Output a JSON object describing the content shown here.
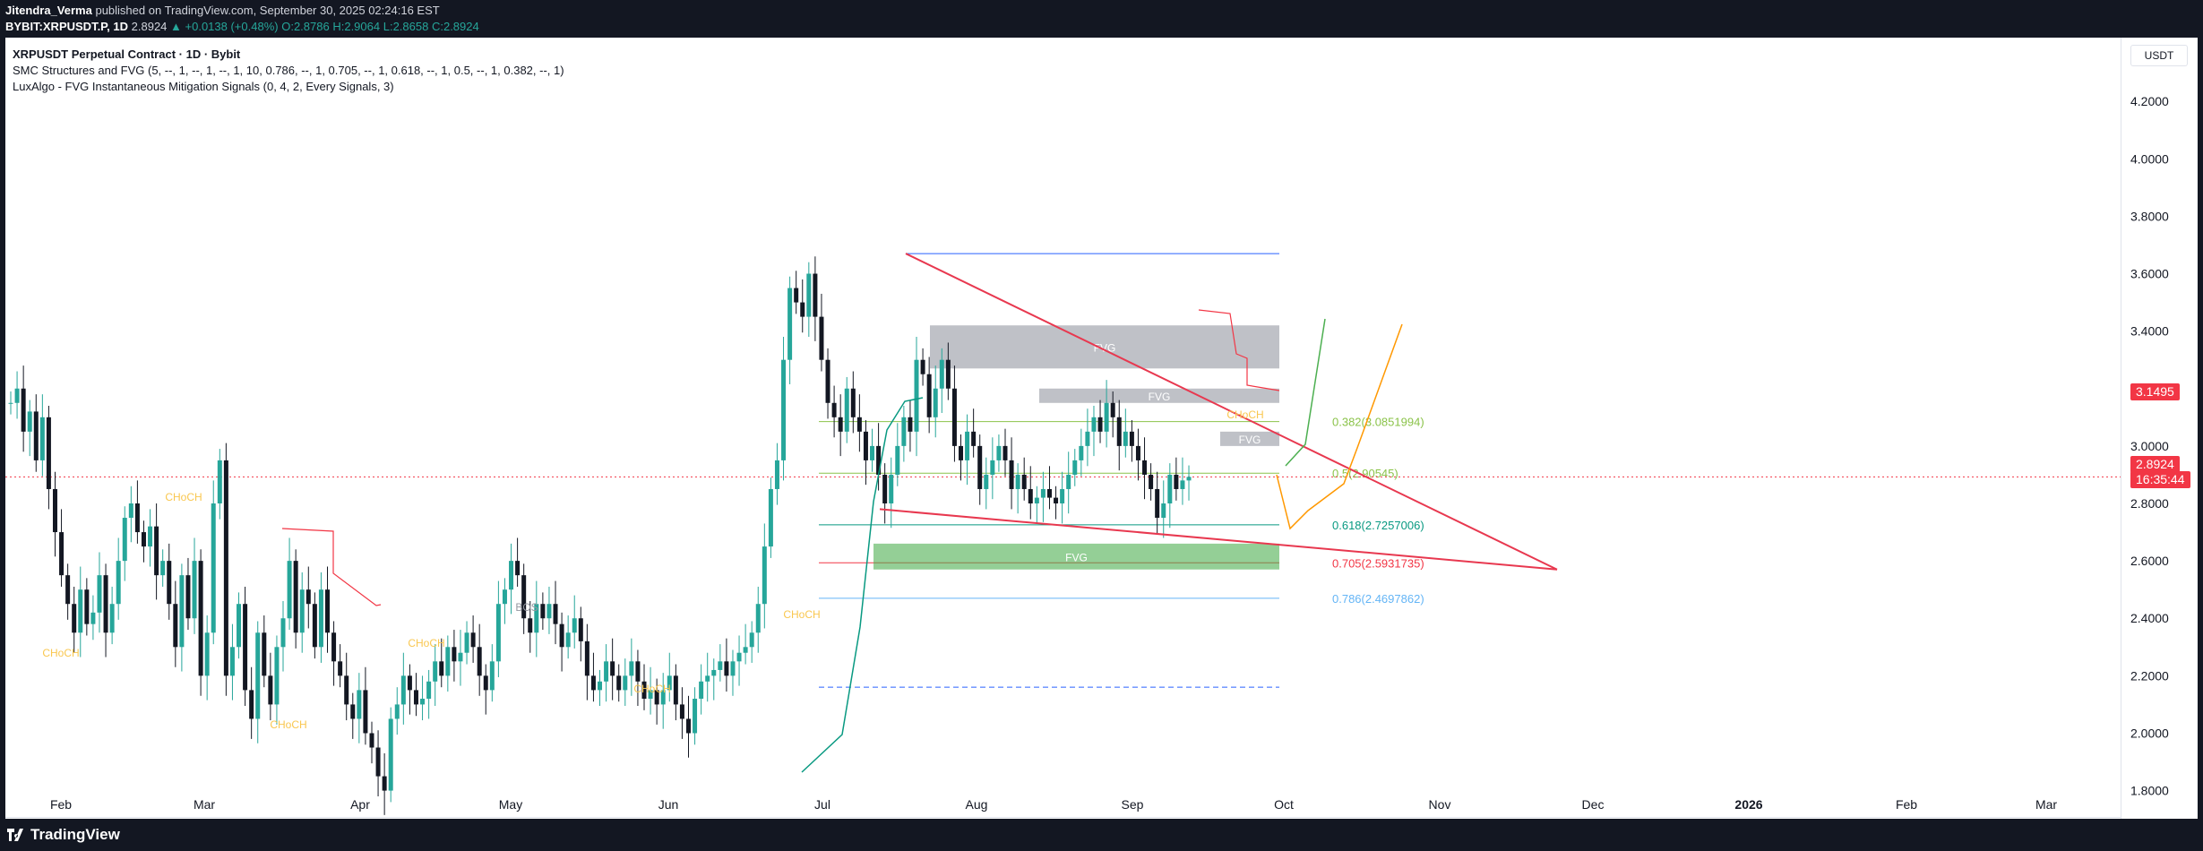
{
  "header": {
    "author": "Jitendra_Verma",
    "published": "published on TradingView.com, September 30, 2025 02:24:16 EST",
    "symbol": "BYBIT:XRPUSDT.P, 1D",
    "last": "2.8924",
    "change": "▲ +0.0138 (+0.48%)",
    "ohlc_o": "O:2.8786",
    "ohlc_h": "H:2.9064",
    "ohlc_l": "L:2.8658",
    "ohlc_c": "C:2.8924"
  },
  "legend": {
    "title": "XRPUSDT Perpetual Contract · 1D · Bybit",
    "ind1": "SMC Structures and FVG (5, --, 1, --, 1, --, 1, 10, 0.786, --, 1, 0.705, --, 1, 0.618, --, 1, 0.5, --, 1, 0.382, --, 1)",
    "ind2": "LuxAlgo - FVG Instantaneous Mitigation Signals (0, 4, 2, Every Signals, 3)"
  },
  "unit": "USDT",
  "price_tag_red": "3.1495",
  "price_tag_current": "2.8924",
  "price_tag_timer": "16:35:44",
  "footer": {
    "brand": "TradingView"
  },
  "colors": {
    "bull": "#26a69a",
    "bear": "#131722",
    "trend": "#e8384f",
    "fvg_gray": "#9598a1",
    "fvg_green": "#4caf50"
  },
  "chart_data": {
    "type": "candlestick",
    "title": "XRPUSDT Perpetual Contract · 1D · Bybit",
    "xlabel": "",
    "ylabel": "",
    "ylim": [
      1.7,
      4.35
    ],
    "x_ticks": [
      "Feb",
      "Mar",
      "Apr",
      "May",
      "Jun",
      "Jul",
      "Aug",
      "Sep",
      "Oct",
      "Nov",
      "Dec",
      "2026",
      "Feb",
      "Mar"
    ],
    "y_ticks": [
      1.8,
      2.0,
      2.2,
      2.4,
      2.6,
      2.8,
      3.0,
      3.2,
      3.4,
      3.6,
      3.8,
      4.0,
      4.2
    ],
    "y_tick_labels": [
      "1.8000",
      "2.0000",
      "2.2000",
      "2.4000",
      "2.6000",
      "2.8000",
      "3.0000",
      "3.2000",
      "3.4000",
      "3.6000",
      "3.8000",
      "4.0000",
      "4.2000"
    ],
    "closes": [
      3.15,
      3.2,
      3.05,
      3.12,
      2.95,
      3.1,
      2.85,
      2.7,
      2.55,
      2.45,
      2.35,
      2.5,
      2.38,
      2.42,
      2.55,
      2.35,
      2.45,
      2.6,
      2.75,
      2.8,
      2.7,
      2.65,
      2.72,
      2.55,
      2.6,
      2.45,
      2.3,
      2.55,
      2.4,
      2.6,
      2.2,
      2.35,
      2.8,
      2.95,
      2.2,
      2.3,
      2.45,
      2.15,
      2.05,
      2.35,
      2.2,
      2.1,
      2.3,
      2.4,
      2.6,
      2.35,
      2.5,
      2.45,
      2.3,
      2.5,
      2.35,
      2.25,
      2.2,
      2.1,
      2.05,
      2.15,
      2.0,
      1.95,
      1.85,
      1.8,
      2.05,
      2.1,
      2.2,
      2.15,
      2.1,
      2.12,
      2.18,
      2.25,
      2.2,
      2.3,
      2.25,
      2.28,
      2.35,
      2.3,
      2.2,
      2.15,
      2.25,
      2.45,
      2.5,
      2.6,
      2.55,
      2.4,
      2.35,
      2.45,
      2.4,
      2.45,
      2.38,
      2.3,
      2.35,
      2.4,
      2.32,
      2.2,
      2.15,
      2.18,
      2.25,
      2.2,
      2.15,
      2.2,
      2.25,
      2.18,
      2.12,
      2.15,
      2.1,
      2.15,
      2.2,
      2.1,
      2.05,
      2.0,
      2.12,
      2.18,
      2.2,
      2.22,
      2.25,
      2.2,
      2.25,
      2.28,
      2.3,
      2.35,
      2.45,
      2.65,
      2.85,
      2.95,
      3.3,
      3.55,
      3.5,
      3.45,
      3.6,
      3.45,
      3.3,
      3.15,
      3.1,
      3.05,
      3.2,
      3.1,
      3.05,
      2.95,
      3.0,
      2.9,
      2.8,
      2.9,
      3.0,
      3.1,
      3.05,
      3.3,
      3.25,
      3.1,
      3.2,
      3.3,
      3.2,
      3.0,
      2.95,
      3.05,
      3.0,
      2.85,
      2.9,
      2.95,
      3.0,
      2.95,
      2.85,
      2.9,
      2.85,
      2.8,
      2.82,
      2.85,
      2.82,
      2.8,
      2.85,
      2.9,
      2.95,
      3.0,
      3.05,
      3.1,
      3.05,
      3.15,
      3.1,
      3.0,
      3.05,
      3.0,
      2.95,
      2.9,
      2.85,
      2.75,
      2.8,
      2.9,
      2.85,
      2.88,
      2.8924
    ],
    "price_lines": [
      {
        "label": "0.382(3.0851994)",
        "price": 3.0852
      },
      {
        "label": "0.5(2.90545)",
        "price": 2.90545
      },
      {
        "label": "0.618(2.7257006)",
        "price": 2.7257
      },
      {
        "label": "0.705(2.5931735)",
        "price": 2.5932
      },
      {
        "label": "0.786(2.4697862)",
        "price": 2.4698
      }
    ],
    "fvg_zones": [
      {
        "label": "FVG",
        "top": 3.42,
        "bottom": 3.27
      },
      {
        "label": "FVG",
        "top": 3.2,
        "bottom": 3.15
      },
      {
        "label": "FVG",
        "top": 3.05,
        "bottom": 3.0
      },
      {
        "label": "FVG",
        "top": 2.66,
        "bottom": 2.57
      }
    ],
    "annotations": [
      "CHoCH",
      "CHoCH",
      "CHoCH",
      "BOS",
      "CHoCH",
      "CHoCH",
      "CHoCH",
      "CHoCH"
    ]
  }
}
